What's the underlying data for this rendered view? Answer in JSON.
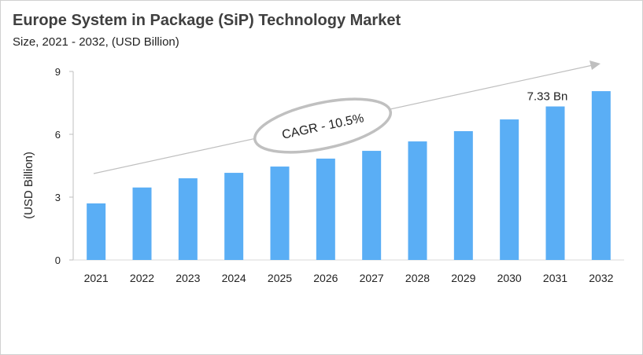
{
  "chart_data": {
    "type": "bar",
    "title": "Europe System in Package (SiP) Technology Market",
    "subtitle": "Size, 2021 - 2032, (USD Billion)",
    "ylabel": "(USD Billion)",
    "xlabel": "",
    "categories": [
      "2021",
      "2022",
      "2023",
      "2024",
      "2025",
      "2026",
      "2027",
      "2028",
      "2029",
      "2030",
      "2031",
      "2032"
    ],
    "values": [
      2.7,
      3.46,
      3.9,
      4.16,
      4.46,
      4.84,
      5.21,
      5.66,
      6.15,
      6.71,
      7.33,
      8.06
    ],
    "ylim": [
      0,
      9
    ],
    "yticks": [
      "0",
      "3",
      "6",
      "9"
    ],
    "grid": false,
    "bar_color": "#5aaef5",
    "data_label": {
      "category": "2031",
      "text": "7.33 Bn"
    },
    "annotation": "CAGR - 10.5%"
  }
}
